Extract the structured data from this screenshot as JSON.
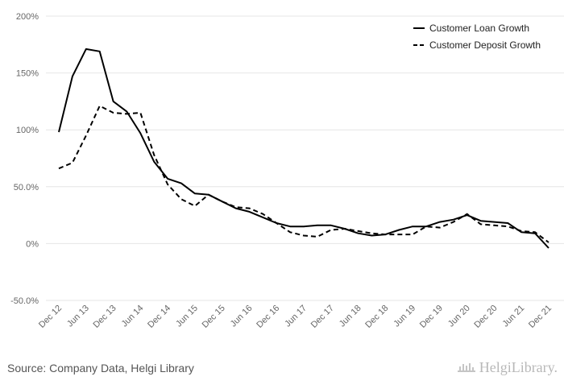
{
  "chart_data": {
    "type": "line",
    "title": "",
    "xlabel": "",
    "ylabel": "",
    "ylim": [
      -50,
      200
    ],
    "yticks": [
      200,
      150,
      100,
      50,
      0,
      -50
    ],
    "ytick_labels": [
      "200%",
      "150%",
      "100%",
      "50.0%",
      "0%",
      "-50.0%"
    ],
    "x_tick_labels": [
      "Dec 12",
      "Jun 13",
      "Dec 13",
      "Jun 14",
      "Dec 14",
      "Jun 15",
      "Dec 15",
      "Jun 16",
      "Dec 16",
      "Jun 17",
      "Dec 17",
      "Jun 18",
      "Dec 18",
      "Jun 19",
      "Dec 19",
      "Jun 20",
      "Dec 20",
      "Jun 21",
      "Dec 21"
    ],
    "x": [
      "Dec 12",
      "Mar 13",
      "Jun 13",
      "Sep 13",
      "Dec 13",
      "Mar 14",
      "Jun 14",
      "Sep 14",
      "Dec 14",
      "Mar 15",
      "Jun 15",
      "Sep 15",
      "Dec 15",
      "Mar 16",
      "Jun 16",
      "Sep 16",
      "Dec 16",
      "Mar 17",
      "Jun 17",
      "Sep 17",
      "Dec 17",
      "Mar 18",
      "Jun 18",
      "Sep 18",
      "Dec 18",
      "Mar 19",
      "Jun 19",
      "Sep 19",
      "Dec 19",
      "Mar 20",
      "Jun 20",
      "Sep 20",
      "Dec 20",
      "Mar 21",
      "Jun 21",
      "Sep 21",
      "Dec 21"
    ],
    "grid": true,
    "legend_position": "top-right",
    "series": [
      {
        "name": "Customer Loan Growth",
        "style": "solid",
        "color": "#000000",
        "values": [
          98,
          147,
          171,
          169,
          125,
          116,
          97,
          72,
          57,
          53,
          44,
          43,
          37,
          31,
          28,
          23,
          18,
          15,
          15,
          16,
          16,
          13,
          9,
          7,
          8,
          12,
          15,
          15,
          19,
          21,
          25,
          20,
          19,
          18,
          10,
          9,
          -4
        ]
      },
      {
        "name": "Customer Deposit Growth",
        "style": "dashed",
        "color": "#000000",
        "values": [
          66,
          71,
          95,
          121,
          115,
          114,
          115,
          78,
          52,
          39,
          33,
          43,
          37,
          32,
          31,
          26,
          18,
          10,
          7,
          6,
          12,
          13,
          11,
          9,
          8,
          8,
          8,
          15,
          14,
          19,
          26,
          17,
          16,
          15,
          11,
          10,
          1
        ]
      }
    ]
  },
  "footer": {
    "source": "Source: Company Data, Helgi Library",
    "brand": "HelgiLibrary."
  }
}
